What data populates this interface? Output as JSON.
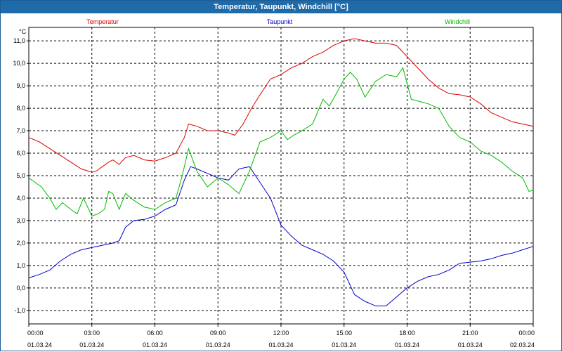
{
  "chart_data": {
    "type": "line",
    "title": "Temperatur, Taupunkt, Windchill [°C]",
    "ylabel": "°C",
    "ylim": [
      -1.6,
      11.6
    ],
    "yticks": [
      11.0,
      10.0,
      9.0,
      8.0,
      7.0,
      6.0,
      5.0,
      4.0,
      3.0,
      2.0,
      1.0,
      0.0,
      -1.0
    ],
    "ytick_labels": [
      "11,0",
      "10,0",
      "9,0",
      "8,0",
      "7,0",
      "6,0",
      "5,0",
      "4,0",
      "3,0",
      "2,0",
      "1,0",
      "0,0",
      "-1,0"
    ],
    "xlim": [
      0,
      24
    ],
    "xticks": [
      0,
      3,
      6,
      9,
      12,
      15,
      18,
      21,
      24
    ],
    "xtick_times": [
      "00:00",
      "03:00",
      "06:00",
      "09:00",
      "12:00",
      "15:00",
      "18:00",
      "21:00",
      "00:00"
    ],
    "xtick_dates": [
      "01.03.24",
      "01.03.24",
      "01.03.24",
      "01.03.24",
      "01.03.24",
      "01.03.24",
      "01.03.24",
      "01.03.24",
      "02.03.24"
    ],
    "grid": true,
    "series": [
      {
        "name": "Temperatur",
        "color": "#dd0000",
        "points": [
          [
            0,
            6.7
          ],
          [
            0.5,
            6.5
          ],
          [
            1,
            6.2
          ],
          [
            1.5,
            5.9
          ],
          [
            2,
            5.6
          ],
          [
            2.5,
            5.3
          ],
          [
            3,
            5.15
          ],
          [
            3.2,
            5.2
          ],
          [
            3.5,
            5.4
          ],
          [
            3.8,
            5.6
          ],
          [
            4,
            5.7
          ],
          [
            4.3,
            5.5
          ],
          [
            4.6,
            5.8
          ],
          [
            5,
            5.9
          ],
          [
            5.5,
            5.7
          ],
          [
            6,
            5.65
          ],
          [
            6.5,
            5.8
          ],
          [
            7,
            6.0
          ],
          [
            7.4,
            6.7
          ],
          [
            7.6,
            7.3
          ],
          [
            8,
            7.2
          ],
          [
            8.5,
            7.0
          ],
          [
            9,
            7.0
          ],
          [
            9.5,
            6.9
          ],
          [
            9.8,
            6.8
          ],
          [
            10.2,
            7.3
          ],
          [
            10.6,
            8.0
          ],
          [
            11,
            8.6
          ],
          [
            11.5,
            9.3
          ],
          [
            12,
            9.5
          ],
          [
            12.5,
            9.8
          ],
          [
            13,
            10.0
          ],
          [
            13.5,
            10.3
          ],
          [
            14,
            10.5
          ],
          [
            14.5,
            10.8
          ],
          [
            15,
            11.0
          ],
          [
            15.5,
            11.1
          ],
          [
            16,
            11.0
          ],
          [
            16.5,
            10.9
          ],
          [
            17,
            10.9
          ],
          [
            17.5,
            10.8
          ],
          [
            18,
            10.3
          ],
          [
            18.5,
            9.8
          ],
          [
            19,
            9.3
          ],
          [
            19.5,
            8.9
          ],
          [
            20,
            8.65
          ],
          [
            20.5,
            8.6
          ],
          [
            21,
            8.5
          ],
          [
            21.5,
            8.2
          ],
          [
            22,
            7.8
          ],
          [
            22.5,
            7.6
          ],
          [
            23,
            7.4
          ],
          [
            23.5,
            7.3
          ],
          [
            24,
            7.2
          ]
        ]
      },
      {
        "name": "Taupunkt",
        "color": "#0000cc",
        "points": [
          [
            0,
            0.45
          ],
          [
            0.5,
            0.6
          ],
          [
            1,
            0.8
          ],
          [
            1.5,
            1.2
          ],
          [
            2,
            1.5
          ],
          [
            2.5,
            1.7
          ],
          [
            3,
            1.8
          ],
          [
            3.5,
            1.9
          ],
          [
            4,
            2.0
          ],
          [
            4.3,
            2.1
          ],
          [
            4.6,
            2.7
          ],
          [
            5,
            3.0
          ],
          [
            5.5,
            3.05
          ],
          [
            6,
            3.2
          ],
          [
            6.5,
            3.5
          ],
          [
            7,
            3.7
          ],
          [
            7.4,
            4.8
          ],
          [
            7.7,
            5.4
          ],
          [
            8,
            5.3
          ],
          [
            8.5,
            5.1
          ],
          [
            9,
            4.9
          ],
          [
            9.5,
            4.8
          ],
          [
            10,
            5.3
          ],
          [
            10.5,
            5.4
          ],
          [
            11,
            4.7
          ],
          [
            11.5,
            4.0
          ],
          [
            12,
            2.8
          ],
          [
            12.5,
            2.3
          ],
          [
            13,
            1.9
          ],
          [
            13.5,
            1.7
          ],
          [
            14,
            1.5
          ],
          [
            14.5,
            1.2
          ],
          [
            15,
            0.7
          ],
          [
            15.5,
            -0.3
          ],
          [
            16,
            -0.6
          ],
          [
            16.5,
            -0.8
          ],
          [
            17,
            -0.8
          ],
          [
            17.5,
            -0.4
          ],
          [
            18,
            0.0
          ],
          [
            18.5,
            0.3
          ],
          [
            19,
            0.5
          ],
          [
            19.5,
            0.6
          ],
          [
            20,
            0.8
          ],
          [
            20.5,
            1.1
          ],
          [
            21,
            1.15
          ],
          [
            21.5,
            1.2
          ],
          [
            22,
            1.3
          ],
          [
            22.5,
            1.45
          ],
          [
            23,
            1.55
          ],
          [
            23.5,
            1.7
          ],
          [
            24,
            1.85
          ]
        ]
      },
      {
        "name": "Windchill",
        "color": "#00bb00",
        "points": [
          [
            0,
            4.9
          ],
          [
            0.3,
            4.7
          ],
          [
            0.6,
            4.5
          ],
          [
            1,
            4.0
          ],
          [
            1.3,
            3.5
          ],
          [
            1.6,
            3.8
          ],
          [
            2,
            3.5
          ],
          [
            2.3,
            3.3
          ],
          [
            2.6,
            4.0
          ],
          [
            3,
            3.2
          ],
          [
            3.3,
            3.3
          ],
          [
            3.6,
            3.5
          ],
          [
            3.8,
            4.3
          ],
          [
            4,
            4.2
          ],
          [
            4.3,
            3.5
          ],
          [
            4.6,
            4.2
          ],
          [
            5,
            3.9
          ],
          [
            5.5,
            3.6
          ],
          [
            6,
            3.5
          ],
          [
            6.5,
            3.8
          ],
          [
            7,
            4.0
          ],
          [
            7.3,
            5.0
          ],
          [
            7.6,
            6.2
          ],
          [
            8,
            5.2
          ],
          [
            8.5,
            4.5
          ],
          [
            9,
            4.9
          ],
          [
            9.5,
            4.6
          ],
          [
            10,
            4.2
          ],
          [
            10.5,
            5.2
          ],
          [
            11,
            6.5
          ],
          [
            11.5,
            6.7
          ],
          [
            12,
            7.0
          ],
          [
            12.3,
            6.6
          ],
          [
            12.6,
            6.8
          ],
          [
            13,
            7.0
          ],
          [
            13.5,
            7.3
          ],
          [
            14,
            8.4
          ],
          [
            14.3,
            8.1
          ],
          [
            14.6,
            8.6
          ],
          [
            15,
            9.3
          ],
          [
            15.3,
            9.6
          ],
          [
            15.6,
            9.3
          ],
          [
            16,
            8.5
          ],
          [
            16.5,
            9.2
          ],
          [
            17,
            9.5
          ],
          [
            17.5,
            9.4
          ],
          [
            17.8,
            9.8
          ],
          [
            18.2,
            8.4
          ],
          [
            18.6,
            8.3
          ],
          [
            19,
            8.2
          ],
          [
            19.5,
            8.0
          ],
          [
            20,
            7.2
          ],
          [
            20.5,
            6.7
          ],
          [
            21,
            6.5
          ],
          [
            21.5,
            6.1
          ],
          [
            22,
            5.9
          ],
          [
            22.5,
            5.6
          ],
          [
            23,
            5.2
          ],
          [
            23.5,
            4.9
          ],
          [
            23.8,
            4.3
          ],
          [
            24,
            4.35
          ]
        ]
      }
    ]
  }
}
